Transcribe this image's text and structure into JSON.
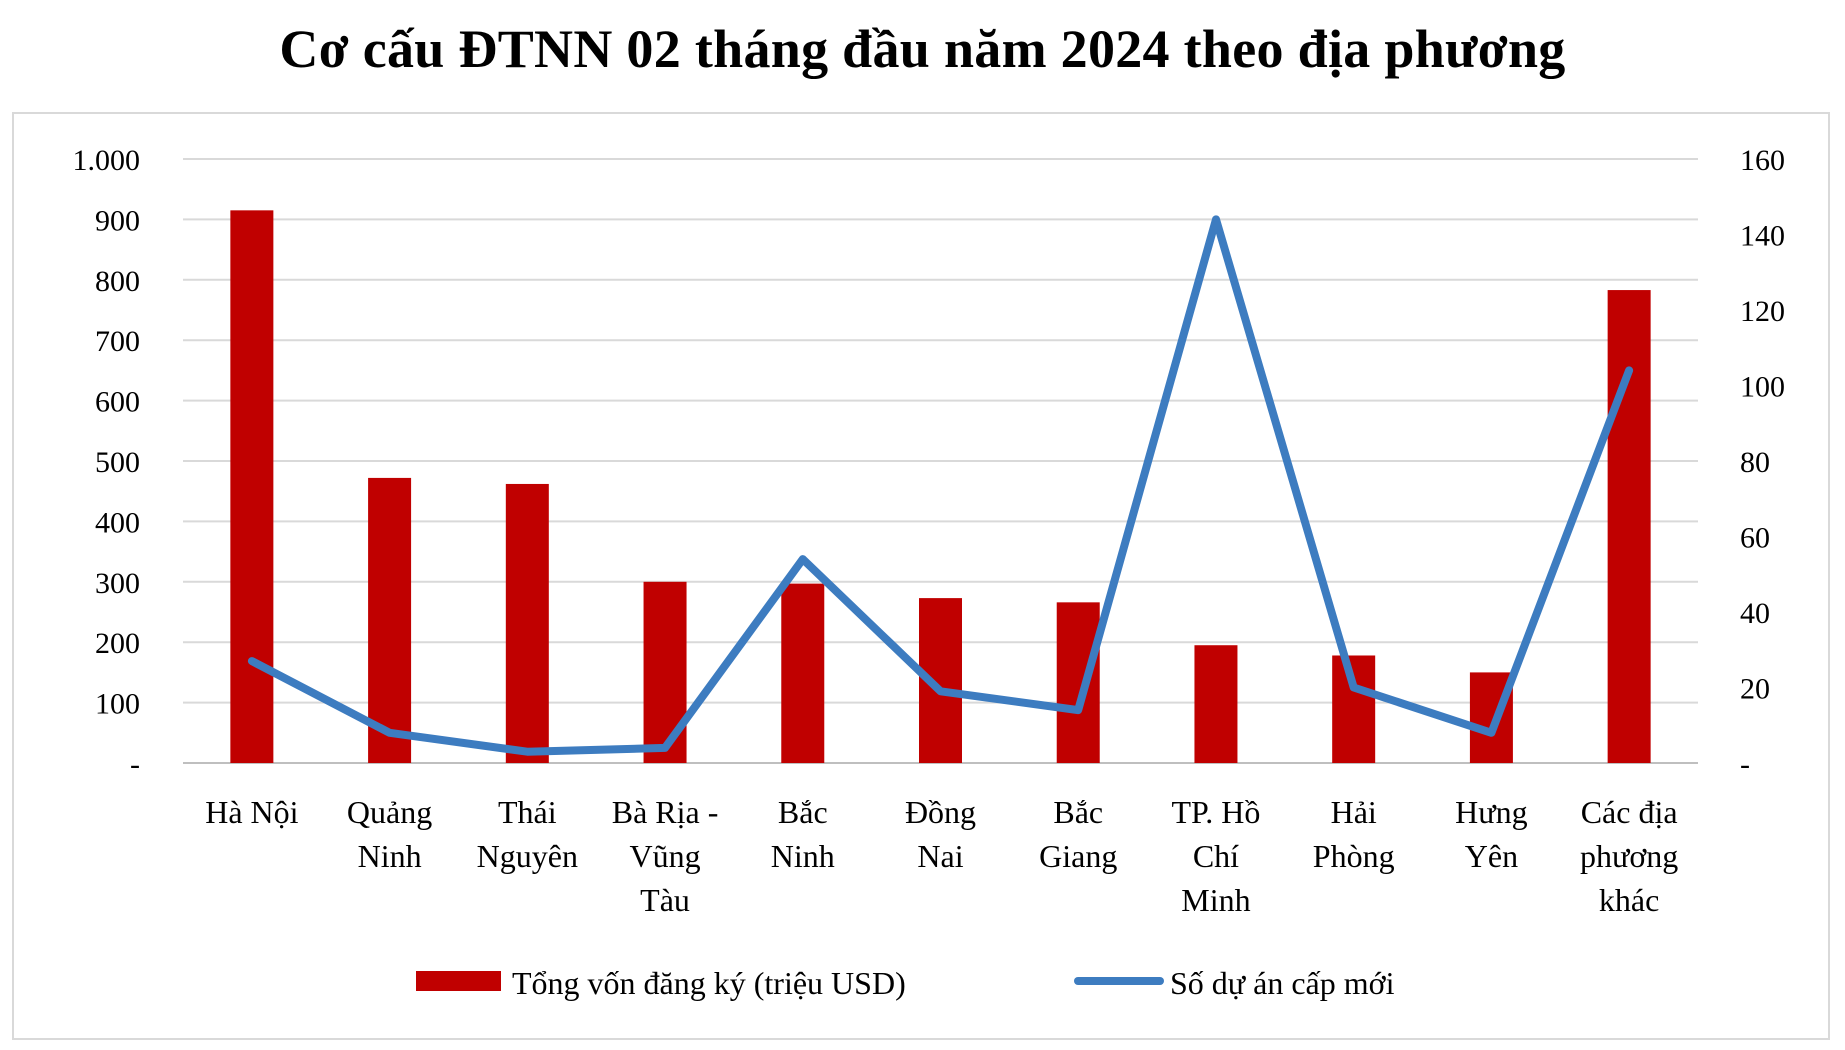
{
  "chart_data": {
    "type": "bar+line",
    "title": "Cơ cấu ĐTNN 02 tháng đầu năm 2024 theo địa phương",
    "categories": [
      [
        "Hà Nội"
      ],
      [
        "Quảng",
        "Ninh"
      ],
      [
        "Thái",
        "Nguyên"
      ],
      [
        "Bà Rịa -",
        "Vũng",
        "Tàu"
      ],
      [
        "Bắc",
        "Ninh"
      ],
      [
        "Đồng",
        "Nai"
      ],
      [
        "Bắc",
        "Giang"
      ],
      [
        "TP. Hồ",
        "Chí",
        "Minh"
      ],
      [
        "Hải",
        "Phòng"
      ],
      [
        "Hưng",
        "Yên"
      ],
      [
        "Các địa",
        "phương",
        "khác"
      ]
    ],
    "series": [
      {
        "name": "Tổng vốn đăng ký (triệu USD)",
        "type": "bar",
        "axis": "left",
        "color": "#c00000",
        "values": [
          915,
          472,
          462,
          300,
          297,
          273,
          266,
          195,
          178,
          150,
          783
        ]
      },
      {
        "name": "Số dự án cấp mới",
        "type": "line",
        "axis": "right",
        "color": "#3d7cc0",
        "values": [
          27,
          8,
          3,
          4,
          54,
          19,
          14,
          144,
          20,
          8,
          104
        ]
      }
    ],
    "y_left": {
      "min": 0,
      "max": 1000,
      "step": 100,
      "tick_labels": [
        "-",
        "100",
        "200",
        "300",
        "400",
        "500",
        "600",
        "700",
        "800",
        "900",
        "1.000"
      ]
    },
    "y_right": {
      "min": 0,
      "max": 160,
      "step": 20,
      "tick_labels": [
        "-",
        "20",
        "40",
        "60",
        "80",
        "100",
        "120",
        "140",
        "160"
      ]
    },
    "grid": true,
    "legend_position": "bottom"
  }
}
